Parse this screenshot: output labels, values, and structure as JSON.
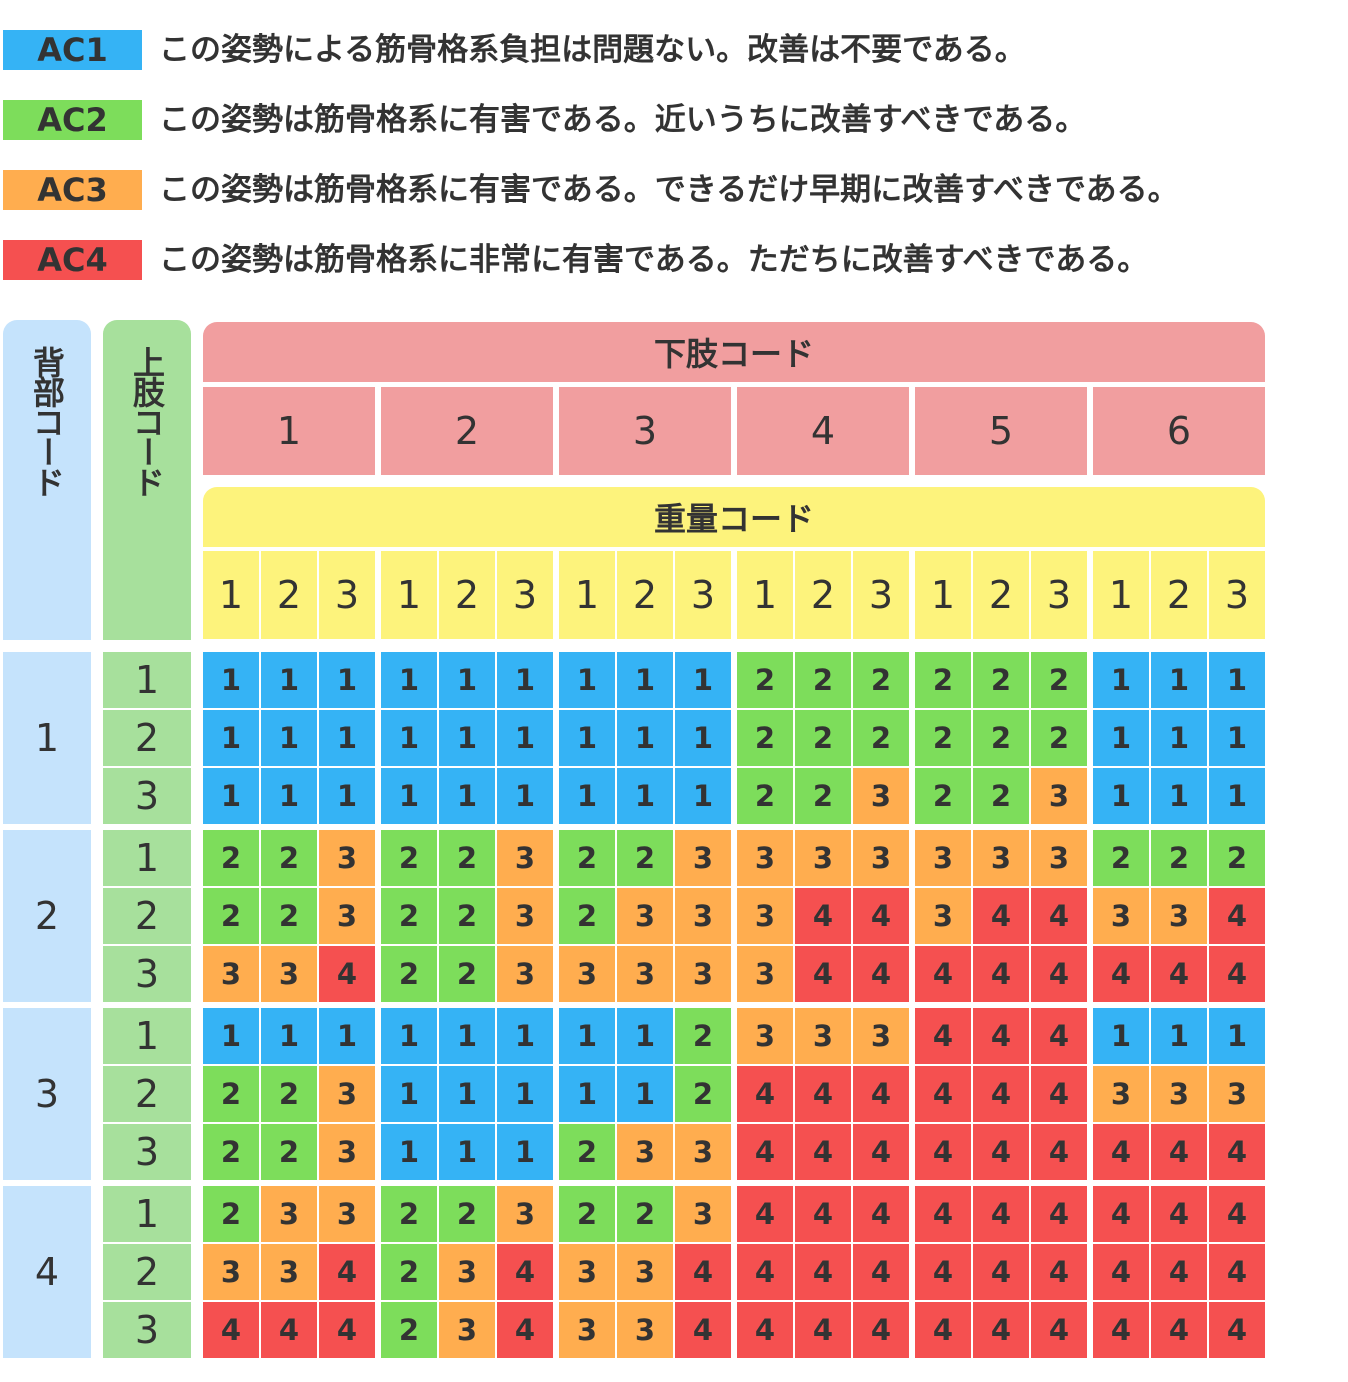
{
  "colors": {
    "ac1": "#35b3f5",
    "ac2": "#7ddd5b",
    "ac3": "#ffad4f",
    "ac4": "#f55050",
    "leg_header": "#f19e9f",
    "weight_header": "#fdf37c",
    "back_col": "#c5e3fc",
    "arm_col": "#a7e09c"
  },
  "legend": [
    {
      "code": "AC1",
      "level": 1,
      "text": "この姿勢による筋骨格系負担は問題ない。改善は不要である。"
    },
    {
      "code": "AC2",
      "level": 2,
      "text": "この姿勢は筋骨格系に有害である。近いうちに改善すべきである。"
    },
    {
      "code": "AC3",
      "level": 3,
      "text": "この姿勢は筋骨格系に有害である。できるだけ早期に改善すべきである。"
    },
    {
      "code": "AC4",
      "level": 4,
      "text": "この姿勢は筋骨格系に非常に有害である。ただちに改善すべきである。"
    }
  ],
  "table": {
    "back_label": "背部コード",
    "arms_label": "上肢コード",
    "legs_label": "下肢コード",
    "weight_label": "重量コード",
    "leg_codes": [
      "1",
      "2",
      "3",
      "4",
      "5",
      "6"
    ],
    "weight_codes": [
      "1",
      "2",
      "3"
    ],
    "back_codes": [
      "1",
      "2",
      "3",
      "4"
    ],
    "arm_codes": [
      "1",
      "2",
      "3"
    ],
    "values": [
      [
        1,
        1,
        1,
        1,
        1,
        1,
        1,
        1,
        1,
        2,
        2,
        2,
        2,
        2,
        2,
        1,
        1,
        1
      ],
      [
        1,
        1,
        1,
        1,
        1,
        1,
        1,
        1,
        1,
        2,
        2,
        2,
        2,
        2,
        2,
        1,
        1,
        1
      ],
      [
        1,
        1,
        1,
        1,
        1,
        1,
        1,
        1,
        1,
        2,
        2,
        3,
        2,
        2,
        3,
        1,
        1,
        1
      ],
      [
        2,
        2,
        3,
        2,
        2,
        3,
        2,
        2,
        3,
        3,
        3,
        3,
        3,
        3,
        3,
        2,
        2,
        2
      ],
      [
        2,
        2,
        3,
        2,
        2,
        3,
        2,
        3,
        3,
        3,
        4,
        4,
        3,
        4,
        4,
        3,
        3,
        4
      ],
      [
        3,
        3,
        4,
        2,
        2,
        3,
        3,
        3,
        3,
        3,
        4,
        4,
        4,
        4,
        4,
        4,
        4,
        4
      ],
      [
        1,
        1,
        1,
        1,
        1,
        1,
        1,
        1,
        2,
        3,
        3,
        3,
        4,
        4,
        4,
        1,
        1,
        1
      ],
      [
        2,
        2,
        3,
        1,
        1,
        1,
        1,
        1,
        2,
        4,
        4,
        4,
        4,
        4,
        4,
        3,
        3,
        3
      ],
      [
        2,
        2,
        3,
        1,
        1,
        1,
        2,
        3,
        3,
        4,
        4,
        4,
        4,
        4,
        4,
        4,
        4,
        4
      ],
      [
        2,
        3,
        3,
        2,
        2,
        3,
        2,
        2,
        3,
        4,
        4,
        4,
        4,
        4,
        4,
        4,
        4,
        4
      ],
      [
        3,
        3,
        4,
        2,
        3,
        4,
        3,
        3,
        4,
        4,
        4,
        4,
        4,
        4,
        4,
        4,
        4,
        4
      ],
      [
        4,
        4,
        4,
        2,
        3,
        4,
        3,
        3,
        4,
        4,
        4,
        4,
        4,
        4,
        4,
        4,
        4,
        4
      ]
    ]
  }
}
